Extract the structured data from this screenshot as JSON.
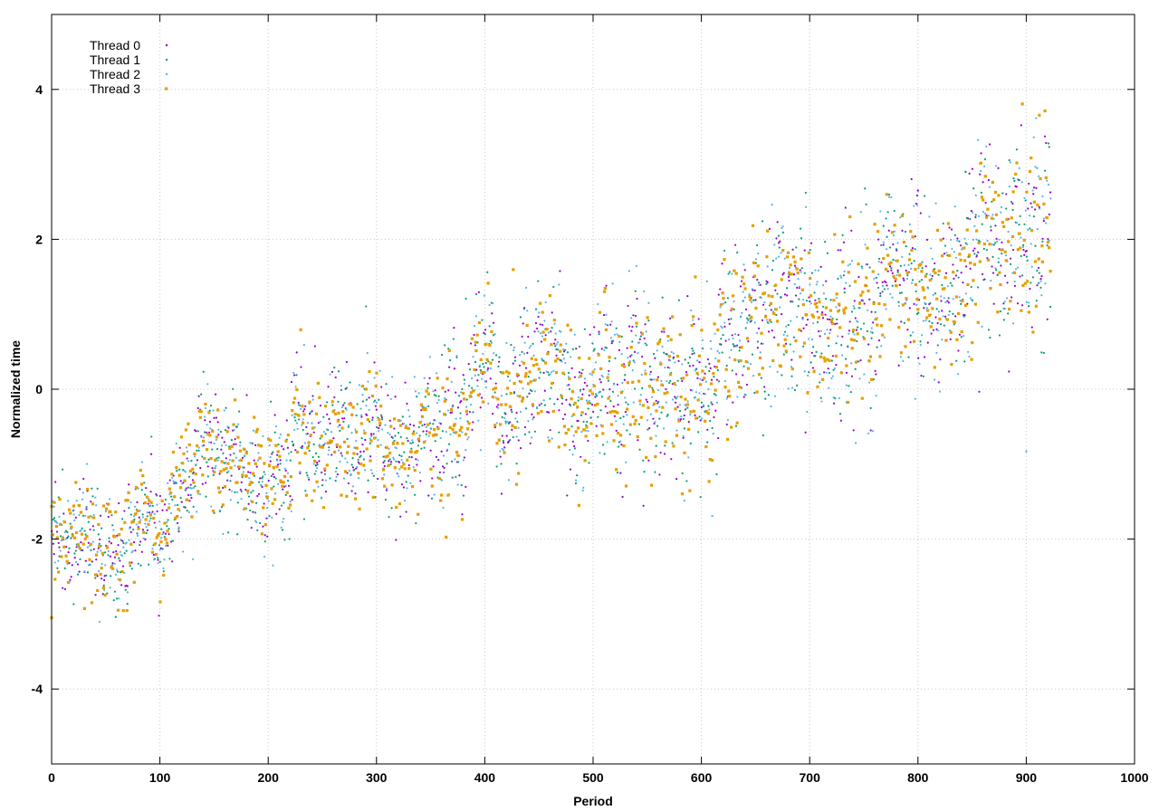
{
  "chart_data": {
    "type": "scatter",
    "title": "",
    "xlabel": "Period",
    "ylabel": "Normalized time",
    "xlim": [
      0,
      1000
    ],
    "ylim": [
      -5,
      5
    ],
    "xticks": [
      0,
      100,
      200,
      300,
      400,
      500,
      600,
      700,
      800,
      900,
      1000
    ],
    "yticks": [
      -4,
      -2,
      0,
      2,
      4
    ],
    "xtick_labels": [
      "0",
      "100",
      "200",
      "300",
      "400",
      "500",
      "600",
      "700",
      "800",
      "900",
      "1000"
    ],
    "ytick_labels": [
      "-4",
      "-2",
      "0",
      "2",
      "4"
    ],
    "grid": true,
    "legend_position": "top-left",
    "trend": {
      "start": -1.9,
      "slope_per_period": 0.0042,
      "spread": 0.35
    },
    "series": [
      {
        "name": "Thread 0",
        "color": "#9400d3",
        "marker": "dot",
        "points_per_period": 1,
        "x_range": [
          0,
          922
        ]
      },
      {
        "name": "Thread 1",
        "color": "#009e73",
        "marker": "dot",
        "points_per_period": 1,
        "x_range": [
          0,
          922
        ]
      },
      {
        "name": "Thread 2",
        "color": "#56b4e9",
        "marker": "dot",
        "points_per_period": 1,
        "x_range": [
          0,
          922
        ]
      },
      {
        "name": "Thread 3",
        "color": "#e69f00",
        "marker": "square",
        "points_per_period": 1,
        "x_range": [
          0,
          922
        ]
      }
    ],
    "notable_points": [
      {
        "series": "Thread 3",
        "x": 0,
        "y": -3.05
      },
      {
        "series": "Thread 3",
        "x": 48,
        "y": -2.65
      },
      {
        "series": "Thread 3",
        "x": 487,
        "y": -1.55
      },
      {
        "series": "Thread 1",
        "x": 844,
        "y": 2.9
      },
      {
        "series": "Thread 2",
        "x": 910,
        "y": 2.95
      },
      {
        "series": "Thread 0",
        "x": 800,
        "y": 2.65
      },
      {
        "series": "Thread 2",
        "x": 900,
        "y": -0.83
      }
    ]
  }
}
